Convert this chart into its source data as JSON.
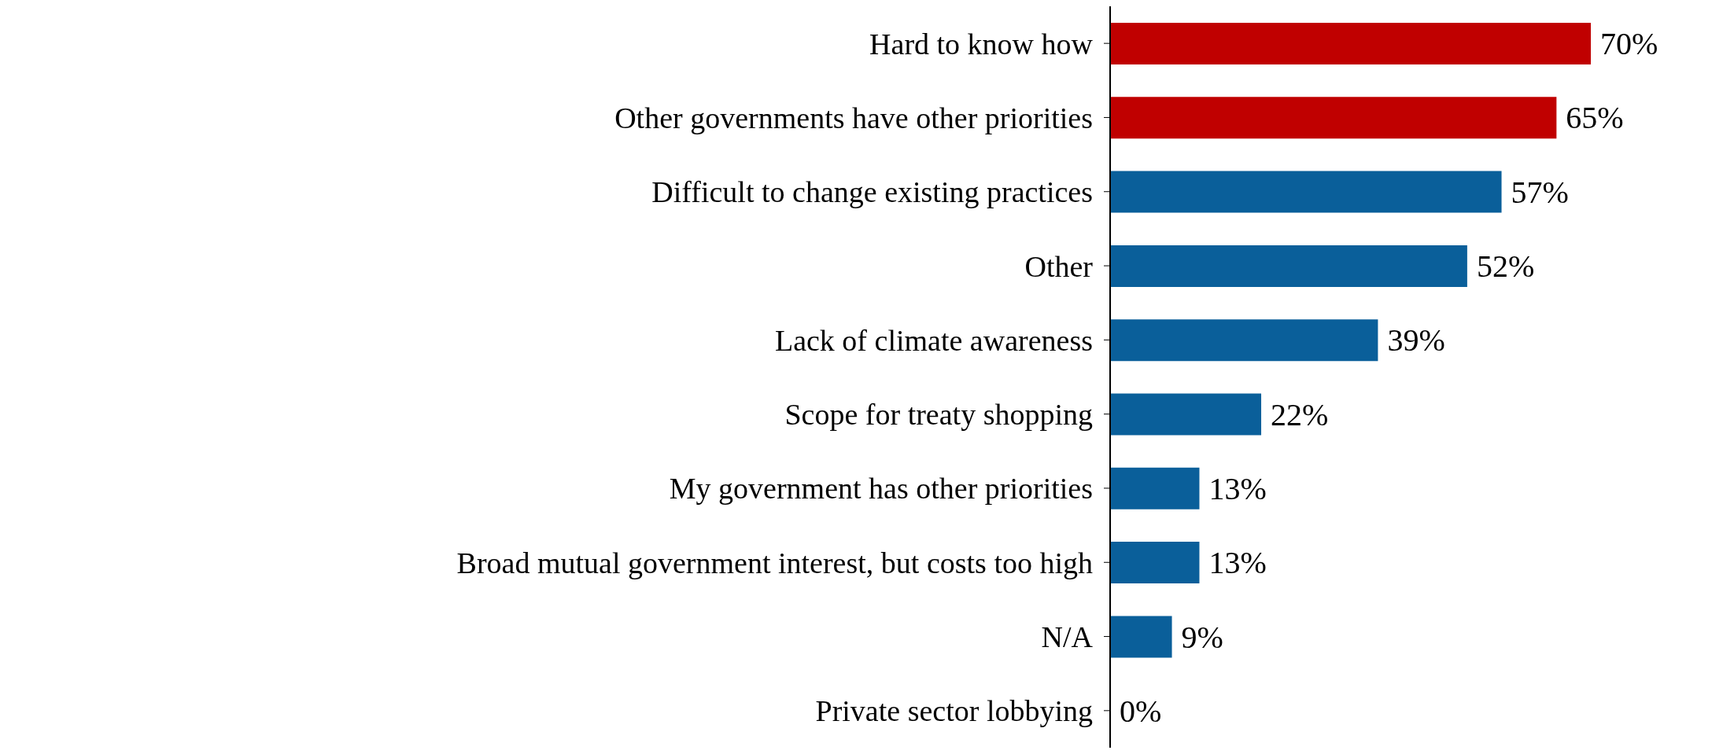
{
  "chart_data": {
    "type": "bar",
    "orientation": "horizontal",
    "categories": [
      "Hard to know how",
      "Other governments have other priorities",
      "Difficult to change existing practices",
      "Other",
      "Lack of climate awareness",
      "Scope for treaty shopping",
      "My government has other priorities",
      "Broad mutual government interest, but costs too high",
      "N/A",
      "Private sector lobbying"
    ],
    "values": [
      70,
      65,
      57,
      52,
      39,
      22,
      13,
      13,
      9,
      0
    ],
    "colors": [
      "#c00000",
      "#c00000",
      "#0a5f9a",
      "#0a5f9a",
      "#0a5f9a",
      "#0a5f9a",
      "#0a5f9a",
      "#0a5f9a",
      "#0a5f9a",
      "#0a5f9a"
    ],
    "value_labels": [
      "70%",
      "65%",
      "57%",
      "52%",
      "39%",
      "22%",
      "13%",
      "13%",
      "9%",
      "0%"
    ],
    "grid": false
  }
}
